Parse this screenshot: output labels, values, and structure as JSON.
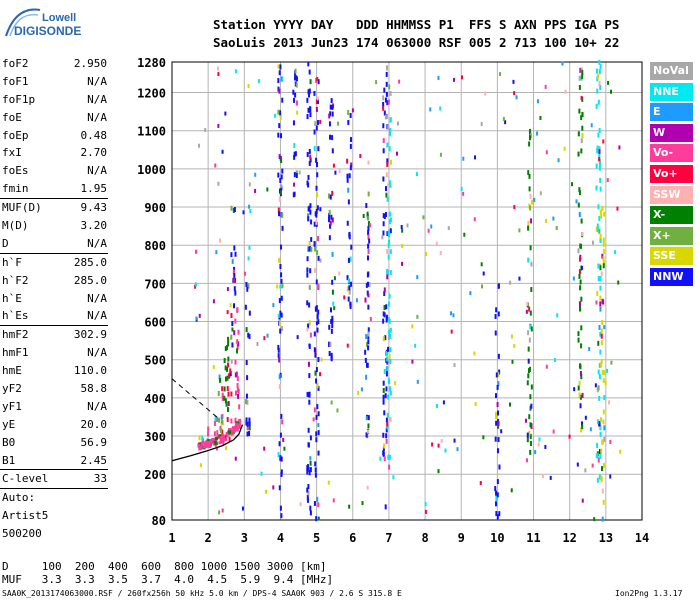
{
  "logo": {
    "line1": "Lowell",
    "line2": "DIGISONDE"
  },
  "header": {
    "line1": "Station YYYY DAY   DDD HHMMSS P1  FFS S AXN PPS IGA PS",
    "line2": "SaoLuis 2013 Jun23 174 063000 RSF 005 2 713 100 10+ 22"
  },
  "parameters": {
    "group1": [
      {
        "name": "foF2",
        "value": "2.950"
      },
      {
        "name": "foF1",
        "value": "N/A"
      },
      {
        "name": "foF1p",
        "value": "N/A"
      },
      {
        "name": "foE",
        "value": "N/A"
      },
      {
        "name": "foEp",
        "value": "0.48"
      },
      {
        "name": "fxI",
        "value": "2.70"
      },
      {
        "name": "foEs",
        "value": "N/A"
      },
      {
        "name": "fmin",
        "value": "1.95"
      }
    ],
    "group2": [
      {
        "name": "MUF(D)",
        "value": "9.43"
      },
      {
        "name": "M(D)",
        "value": "3.20"
      },
      {
        "name": "D",
        "value": "N/A"
      }
    ],
    "group3": [
      {
        "name": "h`F",
        "value": "285.0"
      },
      {
        "name": "h`F2",
        "value": "285.0"
      },
      {
        "name": "h`E",
        "value": "N/A"
      },
      {
        "name": "h`Es",
        "value": "N/A"
      }
    ],
    "group4": [
      {
        "name": "hmF2",
        "value": "302.9"
      },
      {
        "name": "hmF1",
        "value": "N/A"
      },
      {
        "name": "hmE",
        "value": "110.0"
      },
      {
        "name": "yF2",
        "value": "58.8"
      },
      {
        "name": "yF1",
        "value": "N/A"
      },
      {
        "name": "yE",
        "value": "20.0"
      },
      {
        "name": "B0",
        "value": "56.9"
      },
      {
        "name": "B1",
        "value": "2.45"
      }
    ],
    "group5": [
      {
        "name": "C-level",
        "value": "33"
      }
    ],
    "scaling_lines": [
      "Auto:",
      "Artist5",
      "500200"
    ]
  },
  "legend": [
    {
      "label": "NoVal",
      "color": "#a8a8a8"
    },
    {
      "label": "NNE",
      "color": "#00e8f0"
    },
    {
      "label": "E",
      "color": "#1f9bff"
    },
    {
      "label": "W",
      "color": "#b000b0"
    },
    {
      "label": "Vo-",
      "color": "#ff3c9c"
    },
    {
      "label": "Vo+",
      "color": "#ff0040"
    },
    {
      "label": "SSW",
      "color": "#ffb0b0"
    },
    {
      "label": "X-",
      "color": "#008000"
    },
    {
      "label": "X+",
      "color": "#70b040"
    },
    {
      "label": "SSE",
      "color": "#d8d800"
    },
    {
      "label": "NNW",
      "color": "#1010ff"
    }
  ],
  "muf_table": {
    "d_line": "D     100  200  400  600  800 1000 1500 3000 [km]",
    "muf_line": "MUF   3.3  3.3  3.5  3.7  4.0  4.5  5.9  9.4 [MHz]"
  },
  "footer": {
    "left": "SAA0K_2013174063000.RSF / 260fx256h 50 kHz 5.0 km / DPS-4 SAA0K 903 / 2.6 S 315.8 E",
    "right": "Ion2Png 1.3.17"
  },
  "chart_data": {
    "type": "scatter",
    "xlim": [
      1,
      14
    ],
    "ylim": [
      80,
      1280
    ],
    "x_ticks": [
      "1",
      "2",
      "3",
      "4",
      "5",
      "6",
      "7",
      "8",
      "9",
      "10",
      "11",
      "12",
      "13",
      "14"
    ],
    "y_ticks": [
      "80",
      "200",
      "300",
      "400",
      "500",
      "600",
      "700",
      "800",
      "900",
      "1000",
      "1100",
      "1200",
      "1280"
    ],
    "grid": true,
    "profile_curve": {
      "x": [
        1.0,
        1.5,
        2.0,
        2.4,
        2.7,
        2.85,
        2.95
      ],
      "y": [
        235,
        248,
        262,
        275,
        290,
        305,
        330
      ]
    },
    "dashed_line": {
      "x": [
        1.0,
        2.3
      ],
      "y": [
        450,
        345
      ]
    },
    "echo_bands": [
      {
        "x": 1.8,
        "y0": 262,
        "y1": 300,
        "color": "#ff3c9c"
      },
      {
        "x": 2.0,
        "y0": 265,
        "y1": 320,
        "color": "#ff3c9c"
      },
      {
        "x": 2.2,
        "y0": 270,
        "y1": 360,
        "color": "#ff3c9c"
      },
      {
        "x": 2.4,
        "y0": 280,
        "y1": 420,
        "color": "#ff3c9c"
      },
      {
        "x": 2.6,
        "y0": 290,
        "y1": 500,
        "color": "#ff0040"
      },
      {
        "x": 2.8,
        "y0": 300,
        "y1": 640,
        "color": "#ff3c9c"
      },
      {
        "x": 2.5,
        "y0": 290,
        "y1": 560,
        "color": "#008000"
      },
      {
        "x": 2.35,
        "y0": 300,
        "y1": 470,
        "color": "#70b040"
      },
      {
        "x": 2.7,
        "y0": 520,
        "y1": 900,
        "color": "#1010ff"
      },
      {
        "x": 3.1,
        "y0": 300,
        "y1": 700,
        "color": "#1010ff"
      },
      {
        "x": 4.0,
        "y0": 80,
        "y1": 1280,
        "color": "#1010ff"
      },
      {
        "x": 4.4,
        "y0": 900,
        "y1": 1280,
        "color": "#1010ff"
      },
      {
        "x": 4.8,
        "y0": 80,
        "y1": 1280,
        "color": "#1010ff"
      },
      {
        "x": 5.0,
        "y0": 80,
        "y1": 1280,
        "color": "#1010ff"
      },
      {
        "x": 5.4,
        "y0": 500,
        "y1": 1200,
        "color": "#1010ff"
      },
      {
        "x": 5.9,
        "y0": 600,
        "y1": 1150,
        "color": "#1010ff"
      },
      {
        "x": 6.4,
        "y0": 300,
        "y1": 1000,
        "color": "#1010ff"
      },
      {
        "x": 6.9,
        "y0": 100,
        "y1": 1260,
        "color": "#1010ff"
      },
      {
        "x": 7.0,
        "y0": 200,
        "y1": 1280,
        "color": "#00e8f0"
      },
      {
        "x": 10.0,
        "y0": 80,
        "y1": 700,
        "color": "#1010ff"
      },
      {
        "x": 10.9,
        "y0": 250,
        "y1": 1100,
        "color": "#008000"
      },
      {
        "x": 12.8,
        "y0": 150,
        "y1": 1280,
        "color": "#00e8f0"
      },
      {
        "x": 12.9,
        "y0": 80,
        "y1": 900,
        "color": "#d8d800"
      },
      {
        "x": 12.3,
        "y0": 300,
        "y1": 1280,
        "color": "#008000"
      }
    ]
  }
}
